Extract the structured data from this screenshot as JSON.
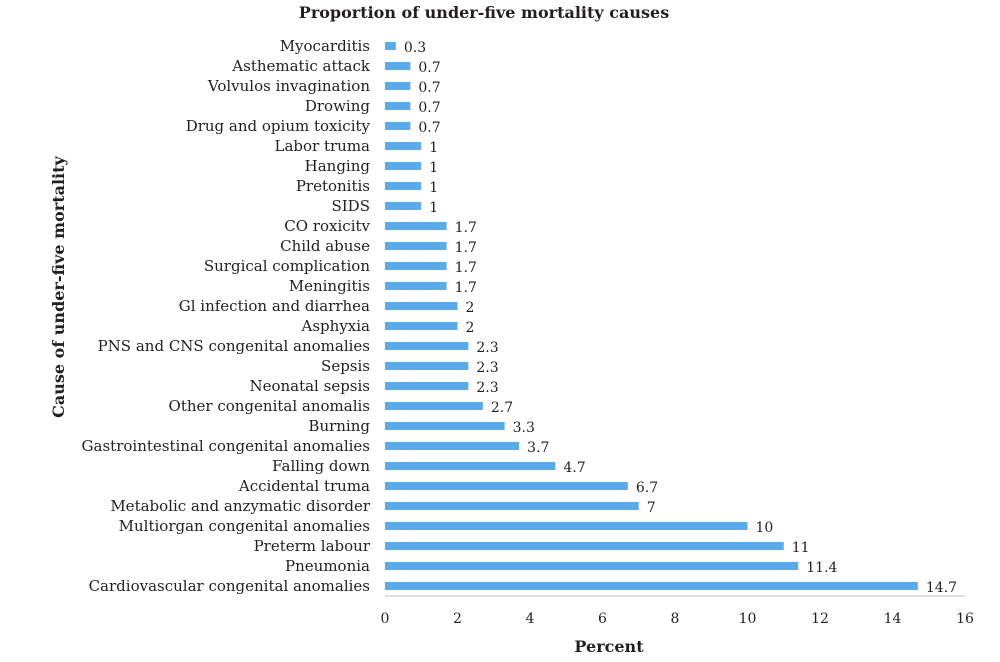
{
  "chart_data": {
    "type": "bar",
    "orientation": "horizontal",
    "title": "Proportion of under-five mortality causes",
    "xlabel": "Percent",
    "ylabel": "Cause of under-five mortality",
    "xlim": [
      0,
      16
    ],
    "xticks": [
      "0",
      "2",
      "4",
      "6",
      "8",
      "10",
      "12",
      "14",
      "16"
    ],
    "grid": false,
    "bar_color": "#5aabea",
    "categories": [
      "Myocarditis",
      "Asthematic attack",
      "Volvulos invagination",
      "Drowing",
      "Drug and opium toxicity",
      "Labor truma",
      "Hanging",
      "Pretonitis",
      "SIDS",
      "CO roxicitv",
      "Child abuse",
      "Surgical complication",
      "Meningitis",
      "Gl infection and diarrhea",
      "Asphyxia",
      "PNS and CNS congenital anomalies",
      "Sepsis",
      "Neonatal sepsis",
      "Other congenital anomalis",
      "Burning",
      "Gastrointestinal congenital anomalies",
      "Falling down",
      "Accidental truma",
      "Metabolic and anzymatic disorder",
      "Multiorgan congenital anomalies",
      "Preterm labour",
      "Pneumonia",
      "Cardiovascular congenital anomalies"
    ],
    "values": [
      0.3,
      0.7,
      0.7,
      0.7,
      0.7,
      1,
      1,
      1,
      1,
      1.7,
      1.7,
      1.7,
      1.7,
      2,
      2,
      2.3,
      2.3,
      2.3,
      2.7,
      3.3,
      3.7,
      4.7,
      6.7,
      7,
      10,
      11,
      11.4,
      14.7
    ],
    "value_labels": [
      "0.3",
      "0.7",
      "0.7",
      "0.7",
      "0.7",
      "1",
      "1",
      "1",
      "1",
      "1.7",
      "1.7",
      "1.7",
      "1.7",
      "2",
      "2",
      "2.3",
      "2.3",
      "2.3",
      "2.7",
      "3.3",
      "3.7",
      "4.7",
      "6.7",
      "7",
      "10",
      "11",
      "11.4",
      "14.7"
    ]
  }
}
